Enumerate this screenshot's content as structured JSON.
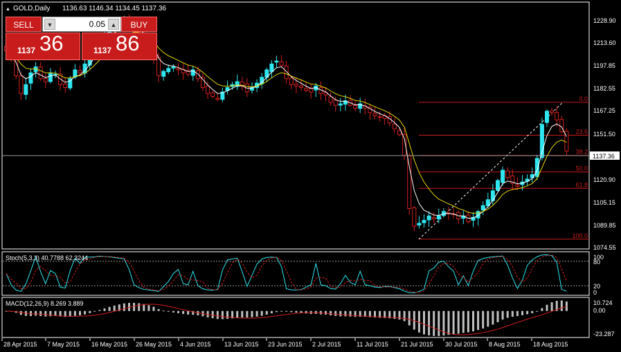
{
  "header": {
    "symbol_timeframe": "GOLD,Daily",
    "ohlc": "1136.63 1146.34 1134.45 1137.36"
  },
  "trade_panel": {
    "sell_label": "SELL",
    "buy_label": "BUY",
    "volume": "0.05",
    "sell_price_int": "1137",
    "sell_price_big": "36",
    "buy_price_int": "1137",
    "buy_price_big": "86"
  },
  "price_axis": {
    "labels": [
      "1228.90",
      "1213.60",
      "1197.85",
      "1182.55",
      "1167.25",
      "1151.50",
      "1120.90",
      "1105.15",
      "1089.85",
      "1074.55"
    ],
    "current_price": "1137.36"
  },
  "fibonacci": {
    "levels": [
      "0.0",
      "23.6",
      "38.2",
      "50.0",
      "61.8",
      "100.0"
    ],
    "prices": [
      1170.0,
      1147.7,
      1134.0,
      1122.8,
      1111.7,
      1077.2
    ]
  },
  "stochastic": {
    "label": "Stoch(5,3,3) 40.7788 62.3244",
    "axis_labels": [
      "100",
      "80",
      "20",
      "0"
    ]
  },
  "macd": {
    "label": "MACD(12,26,9) 8.269 3.889",
    "axis_labels": [
      "10.724",
      "0.00",
      "-23.287"
    ]
  },
  "time_axis": {
    "labels": [
      "28 Apr 2015",
      "7 May 2015",
      "16 May 2015",
      "26 May 2015",
      "4 Jun 2015",
      "13 Jun 2015",
      "23 Jun 2015",
      "2 Jul 2015",
      "11 Jul 2015",
      "21 Jul 2015",
      "30 Jul 2015",
      "8 Aug 2015",
      "18 Aug 2015"
    ]
  },
  "chart_data": {
    "type": "candlestick",
    "symbol": "GOLD",
    "timeframe": "Daily",
    "ylim": [
      1072,
      1237
    ],
    "close": [
      1205,
      1200,
      1188,
      1176,
      1182,
      1190,
      1194,
      1186,
      1184,
      1190,
      1189,
      1182,
      1180,
      1186,
      1192,
      1190,
      1196,
      1202,
      1208,
      1212,
      1216,
      1220,
      1222,
      1224,
      1226,
      1224,
      1221,
      1217,
      1212,
      1207,
      1200,
      1188,
      1191,
      1193,
      1194,
      1192,
      1190,
      1189,
      1192,
      1186,
      1180,
      1176,
      1174,
      1172,
      1177,
      1180,
      1182,
      1184,
      1181,
      1177,
      1180,
      1183,
      1187,
      1192,
      1196,
      1198,
      1195,
      1186,
      1182,
      1181,
      1180,
      1178,
      1177,
      1181,
      1176,
      1175,
      1170,
      1168,
      1169,
      1171,
      1168,
      1166,
      1169,
      1166,
      1163,
      1161,
      1160,
      1159,
      1156,
      1152,
      1148,
      1134,
      1098,
      1086,
      1088,
      1090,
      1093,
      1091,
      1093,
      1096,
      1095,
      1094,
      1091,
      1093,
      1089,
      1092,
      1096,
      1100,
      1104,
      1110,
      1117,
      1124,
      1119,
      1115,
      1113,
      1116,
      1118,
      1121,
      1132,
      1155,
      1164,
      1163,
      1158,
      1150,
      1137
    ],
    "series": [
      {
        "name": "",
        "type": "line",
        "color": "#ffffff"
      },
      {
        "name": "",
        "type": "line",
        "color": "#e6d600"
      }
    ],
    "stochastic": {
      "ylim": [
        0,
        100
      ],
      "levels": [
        80,
        20
      ]
    },
    "macd": {
      "ylim": [
        -23.287,
        10.724
      ]
    }
  },
  "colors": {
    "bull": "#2ee6f0",
    "bear": "#d42020",
    "fib": "#c81c1c",
    "stoch_main": "#2ee6f0",
    "stoch_signal": "#d42020",
    "macd_hist": "#c0c0c0",
    "macd_signal": "#d42020"
  }
}
